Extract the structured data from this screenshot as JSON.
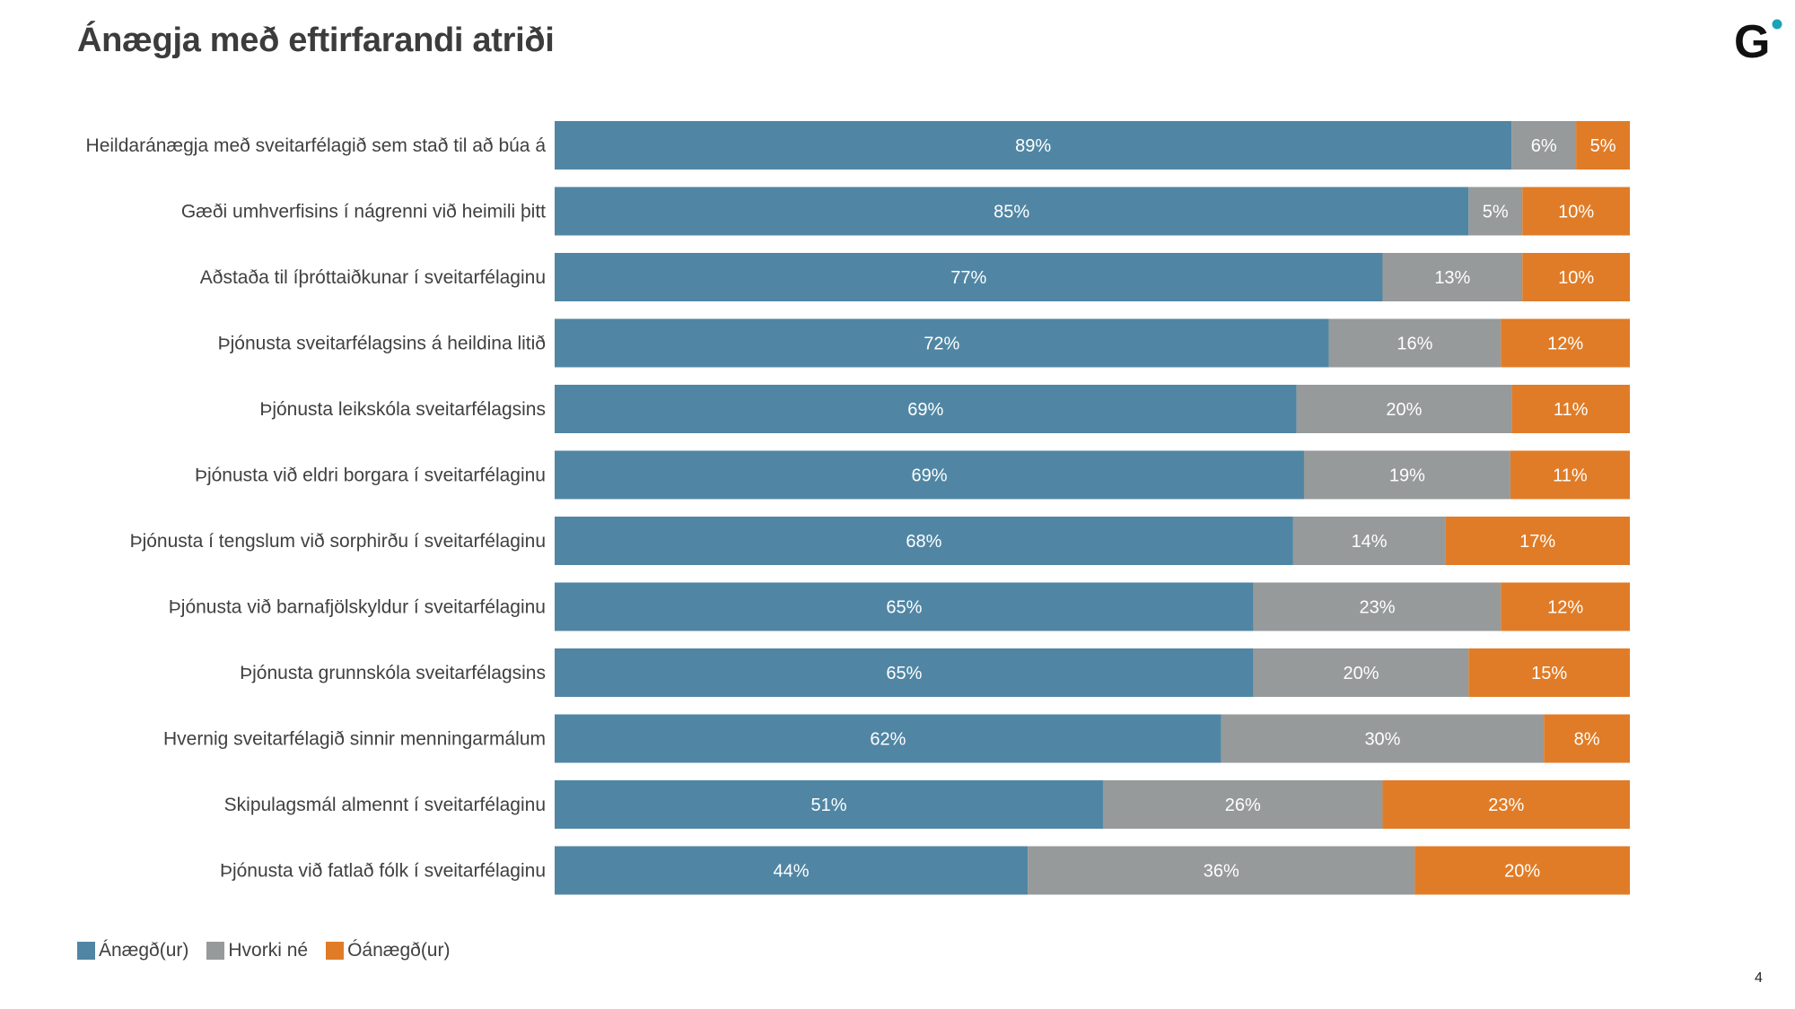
{
  "title": "Ánægja með eftirfarandi atriði",
  "logo_text": "G",
  "page_number": "4",
  "colors": {
    "satisfied": "#5086a4",
    "neutral": "#969a9a",
    "dissatisfied": "#e07c27",
    "logo_dot": "#1aa3b8"
  },
  "chart_data": {
    "type": "bar",
    "orientation": "horizontal",
    "stacked": true,
    "normalized": true,
    "categories": [
      "Heildaránægja með sveitarfélagið sem stað til að búa á",
      "Gæði umhverfisins í nágrenni við heimili þitt",
      "Aðstaða til íþróttaiðkunar í sveitarfélaginu",
      "Þjónusta sveitarfélagsins á heildina litið",
      "Þjónusta leikskóla sveitarfélagsins",
      "Þjónusta við eldri borgara í sveitarfélaginu",
      "Þjónusta í tengslum við sorphirðu í sveitarfélaginu",
      "Þjónusta við barnafjölskyldur í sveitarfélaginu",
      "Þjónusta grunnskóla sveitarfélagsins",
      "Hvernig sveitarfélagið sinnir menningarmálum",
      "Skipulagsmál almennt í sveitarfélaginu",
      "Þjónusta við fatlað fólk í sveitarfélaginu"
    ],
    "series": [
      {
        "name": "Ánægð(ur)",
        "color": "#5086a4",
        "values": [
          89,
          85,
          77,
          72,
          69,
          69,
          68,
          65,
          65,
          62,
          51,
          44
        ]
      },
      {
        "name": "Hvorki né",
        "color": "#969a9a",
        "values": [
          6,
          5,
          13,
          16,
          20,
          19,
          14,
          23,
          20,
          30,
          26,
          36
        ]
      },
      {
        "name": "Óánægð(ur)",
        "color": "#e07c27",
        "values": [
          5,
          10,
          10,
          12,
          11,
          11,
          17,
          12,
          15,
          8,
          23,
          20
        ]
      }
    ],
    "value_suffix": "%",
    "legend_position": "bottom-left",
    "grid": false
  }
}
